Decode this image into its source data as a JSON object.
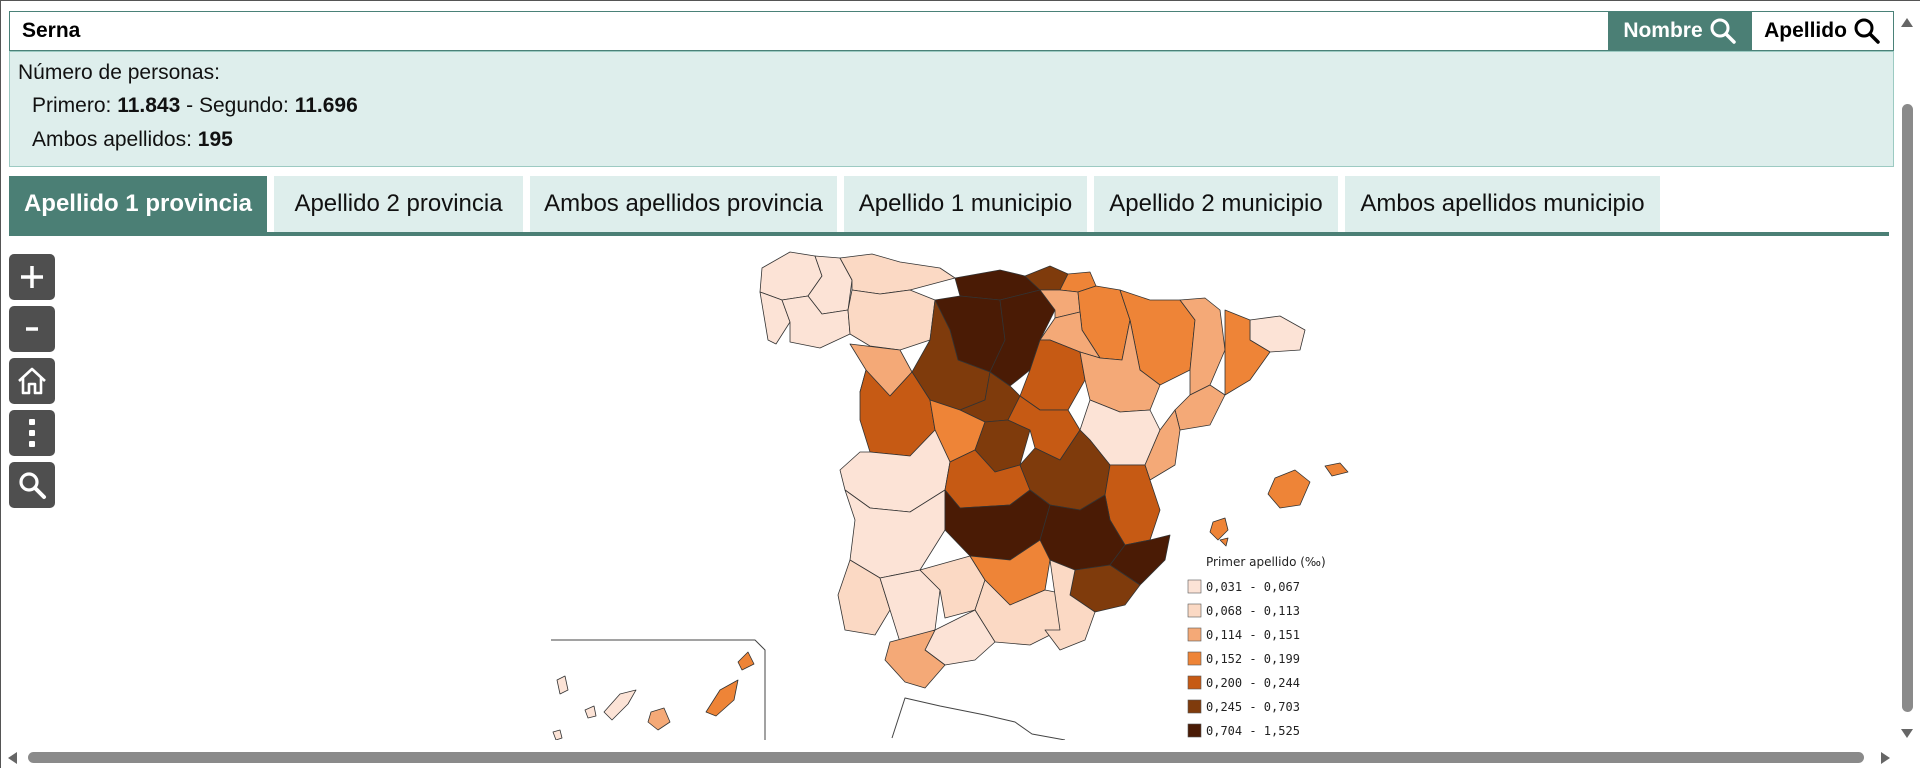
{
  "search": {
    "value": "Serna",
    "nombre_label": "Nombre",
    "apellido_label": "Apellido"
  },
  "info": {
    "title": "Número de personas:",
    "primero_label": "Primero:",
    "primero_value": "11.843",
    "sep": "- Segundo:",
    "segundo_value": "11.696",
    "ambos_label": "Ambos apellidos:",
    "ambos_value": "195"
  },
  "tabs": [
    {
      "label": "Apellido 1 provincia",
      "active": true
    },
    {
      "label": "Apellido 2 provincia",
      "active": false
    },
    {
      "label": "Ambos apellidos provincia",
      "active": false
    },
    {
      "label": "Apellido 1 municipio",
      "active": false
    },
    {
      "label": "Apellido 2 municipio",
      "active": false
    },
    {
      "label": "Ambos apellidos municipio",
      "active": false
    }
  ],
  "controls": [
    {
      "name": "zoom-in",
      "symbol": "+"
    },
    {
      "name": "zoom-out",
      "symbol": "-"
    },
    {
      "name": "home",
      "symbol": "home-icon"
    },
    {
      "name": "more",
      "symbol": "more-vertical-icon"
    },
    {
      "name": "search",
      "symbol": "search-icon"
    }
  ],
  "legend": {
    "title": "Primer apellido (‰)",
    "classes": [
      {
        "label": "0,031 - 0,067",
        "color": "#fce3d6"
      },
      {
        "label": "0,068 - 0,113",
        "color": "#fbd9c4"
      },
      {
        "label": "0,114 - 0,151",
        "color": "#f4a977"
      },
      {
        "label": "0,152 - 0,199",
        "color": "#ee8437"
      },
      {
        "label": "0,200 - 0,244",
        "color": "#c65a14"
      },
      {
        "label": "0,245 - 0,703",
        "color": "#7f3b0c"
      },
      {
        "label": "0,704 - 1,525",
        "color": "#4a1b05"
      }
    ]
  },
  "colors": {
    "accent": "#4b7f75",
    "panel": "#deeeec"
  }
}
